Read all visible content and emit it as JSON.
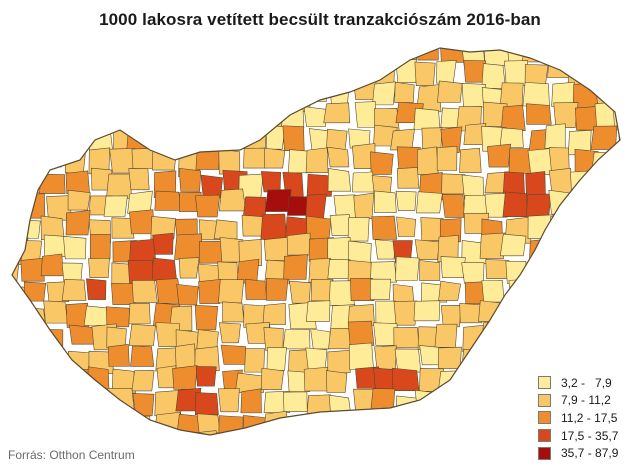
{
  "title": "1000 lakosra vetített becsült tranzakciószám 2016-ban",
  "legend": [
    {
      "label": "3,2 -   7,9",
      "color": "#ffec99"
    },
    {
      "label": "7,9 - 11,2",
      "color": "#f9c766"
    },
    {
      "label": "11,2 - 17,5",
      "color": "#ee8d2e"
    },
    {
      "label": "17,5 - 35,7",
      "color": "#d9481c"
    },
    {
      "label": "35,7 - 87,9",
      "color": "#a60e0e"
    }
  ],
  "source": "Forrás: Otthon Centrum",
  "colors": {
    "border": "#5a4a30"
  }
}
